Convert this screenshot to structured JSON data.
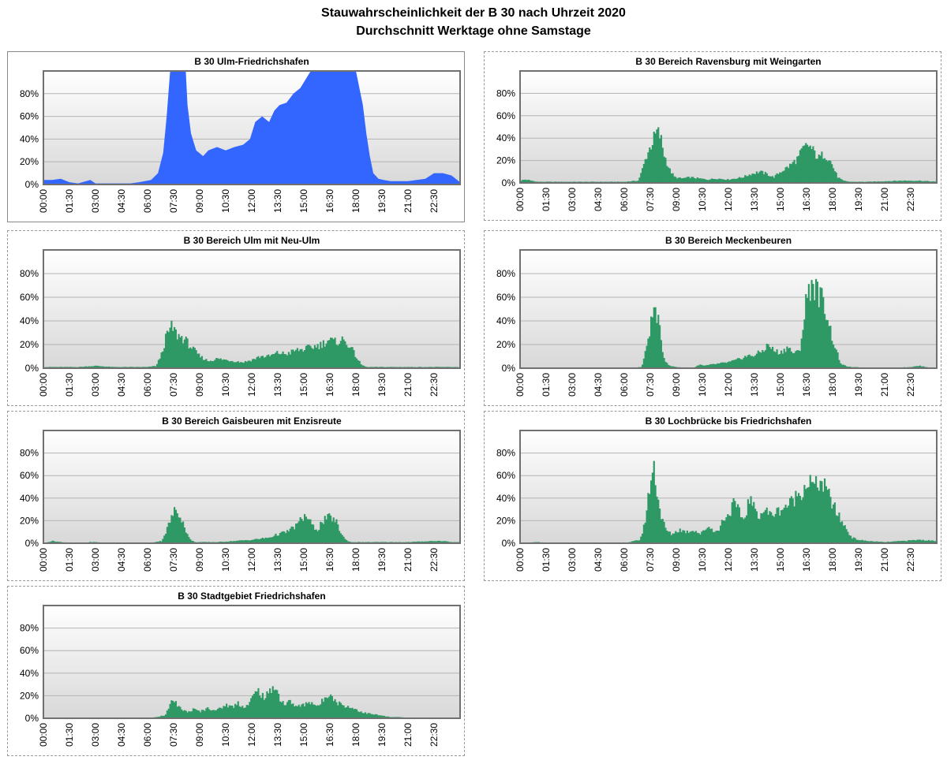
{
  "page": {
    "title": "Stauwahrscheinlichkeit der B 30 nach Uhrzeit 2020",
    "subtitle": "Durchschnitt Werktage ohne Samstage"
  },
  "axes": {
    "x_tick_labels": [
      "00:00",
      "01:30",
      "03:00",
      "04:30",
      "06:00",
      "07:30",
      "09:00",
      "10:30",
      "12:00",
      "13:30",
      "15:00",
      "16:30",
      "18:00",
      "19:30",
      "21:00",
      "22:30"
    ],
    "y_tick_labels": [
      "0%",
      "20%",
      "40%",
      "60%",
      "80%"
    ],
    "y_range": [
      0,
      100
    ],
    "x_range_hours": [
      0,
      24
    ],
    "grid": true
  },
  "colors": {
    "blue": "#3366ff",
    "green": "#2e9965",
    "plot_gradient_top": "#ffffff",
    "plot_gradient_bottom": "#d8d8d8",
    "gridline": "#b4b4b4",
    "plot_frame": "#707070"
  },
  "chart_data": [
    {
      "type": "area",
      "title": "B 30 Ulm-Friedrichshafen",
      "color": "blue",
      "x_unit": "hour of day",
      "y_unit": "%",
      "ylim": [
        0,
        100
      ],
      "points": [
        [
          0,
          4
        ],
        [
          0.5,
          4
        ],
        [
          1,
          5
        ],
        [
          1.5,
          2
        ],
        [
          2,
          1
        ],
        [
          2.7,
          4
        ],
        [
          3,
          1
        ],
        [
          4,
          1
        ],
        [
          5,
          1
        ],
        [
          5.5,
          2
        ],
        [
          6.2,
          4
        ],
        [
          6.6,
          10
        ],
        [
          6.9,
          28
        ],
        [
          7.1,
          60
        ],
        [
          7.3,
          100
        ],
        [
          8.2,
          100
        ],
        [
          8.3,
          70
        ],
        [
          8.5,
          45
        ],
        [
          8.8,
          30
        ],
        [
          9.2,
          25
        ],
        [
          9.5,
          30
        ],
        [
          10,
          33
        ],
        [
          10.5,
          30
        ],
        [
          11,
          33
        ],
        [
          11.5,
          35
        ],
        [
          11.9,
          40
        ],
        [
          12.2,
          55
        ],
        [
          12.6,
          60
        ],
        [
          13,
          55
        ],
        [
          13.3,
          65
        ],
        [
          13.6,
          70
        ],
        [
          14,
          72
        ],
        [
          14.4,
          80
        ],
        [
          14.8,
          85
        ],
        [
          15,
          90
        ],
        [
          15.4,
          100
        ],
        [
          18,
          100
        ],
        [
          18.2,
          85
        ],
        [
          18.4,
          70
        ],
        [
          18.6,
          45
        ],
        [
          18.8,
          25
        ],
        [
          19,
          10
        ],
        [
          19.3,
          5
        ],
        [
          19.6,
          4
        ],
        [
          20,
          3
        ],
        [
          21,
          3
        ],
        [
          22,
          5
        ],
        [
          22.5,
          10
        ],
        [
          23,
          10
        ],
        [
          23.5,
          8
        ],
        [
          24,
          2
        ]
      ]
    },
    {
      "type": "area",
      "title": "B 30 Bereich Ravensburg mit Weingarten",
      "color": "green",
      "x_unit": "hour of day",
      "y_unit": "%",
      "ylim": [
        0,
        100
      ],
      "points": [
        [
          0,
          2
        ],
        [
          0.3,
          3
        ],
        [
          1,
          1
        ],
        [
          3,
          1
        ],
        [
          5,
          1
        ],
        [
          6,
          1
        ],
        [
          6.8,
          2
        ],
        [
          7,
          10
        ],
        [
          7.3,
          25
        ],
        [
          7.6,
          36
        ],
        [
          7.9,
          46
        ],
        [
          8.1,
          40
        ],
        [
          8.3,
          25
        ],
        [
          8.6,
          12
        ],
        [
          8.9,
          5
        ],
        [
          9.3,
          4
        ],
        [
          9.8,
          5
        ],
        [
          10.3,
          4
        ],
        [
          10.8,
          3
        ],
        [
          11.3,
          4
        ],
        [
          12,
          3
        ],
        [
          12.8,
          5
        ],
        [
          13.3,
          8
        ],
        [
          13.8,
          10
        ],
        [
          14.2,
          8
        ],
        [
          14.6,
          5
        ],
        [
          15,
          10
        ],
        [
          15.5,
          15
        ],
        [
          16,
          22
        ],
        [
          16.3,
          30
        ],
        [
          16.6,
          34
        ],
        [
          16.9,
          28
        ],
        [
          17.2,
          22
        ],
        [
          17.5,
          26
        ],
        [
          17.8,
          22
        ],
        [
          18,
          15
        ],
        [
          18.3,
          5
        ],
        [
          18.6,
          2
        ],
        [
          19,
          1
        ],
        [
          20,
          1
        ],
        [
          22,
          2
        ],
        [
          23,
          2
        ],
        [
          24,
          1
        ]
      ]
    },
    {
      "type": "area",
      "title": "B 30 Bereich Ulm mit Neu-Ulm",
      "color": "green",
      "x_unit": "hour of day",
      "y_unit": "%",
      "ylim": [
        0,
        100
      ],
      "points": [
        [
          0,
          1
        ],
        [
          2,
          1
        ],
        [
          3,
          2
        ],
        [
          4,
          1
        ],
        [
          6,
          1
        ],
        [
          6.5,
          2
        ],
        [
          6.8,
          12
        ],
        [
          7.1,
          28
        ],
        [
          7.4,
          35
        ],
        [
          7.7,
          28
        ],
        [
          8.1,
          25
        ],
        [
          8.5,
          18
        ],
        [
          9,
          10
        ],
        [
          9.5,
          6
        ],
        [
          10,
          8
        ],
        [
          10.5,
          7
        ],
        [
          11,
          6
        ],
        [
          11.5,
          5
        ],
        [
          12,
          7
        ],
        [
          12.5,
          10
        ],
        [
          13,
          10
        ],
        [
          13.5,
          13
        ],
        [
          14,
          12
        ],
        [
          14.5,
          15
        ],
        [
          15,
          16
        ],
        [
          15.5,
          18
        ],
        [
          16,
          20
        ],
        [
          16.4,
          24
        ],
        [
          16.8,
          22
        ],
        [
          17.2,
          24
        ],
        [
          17.6,
          20
        ],
        [
          18,
          10
        ],
        [
          18.3,
          3
        ],
        [
          18.6,
          1
        ],
        [
          20,
          1
        ],
        [
          22,
          1
        ],
        [
          23,
          1
        ],
        [
          24,
          1
        ]
      ]
    },
    {
      "type": "area",
      "title": "B 30 Bereich Meckenbeuren",
      "color": "green",
      "x_unit": "hour of day",
      "y_unit": "%",
      "ylim": [
        0,
        100
      ],
      "points": [
        [
          0,
          0
        ],
        [
          6,
          0
        ],
        [
          7,
          1
        ],
        [
          7.2,
          12
        ],
        [
          7.5,
          35
        ],
        [
          7.7,
          50
        ],
        [
          7.9,
          45
        ],
        [
          8.1,
          25
        ],
        [
          8.3,
          8
        ],
        [
          8.6,
          2
        ],
        [
          9,
          1
        ],
        [
          10,
          0
        ],
        [
          10.3,
          3
        ],
        [
          10.6,
          2
        ],
        [
          11,
          3
        ],
        [
          11.5,
          4
        ],
        [
          12,
          5
        ],
        [
          12.5,
          7
        ],
        [
          13,
          10
        ],
        [
          13.5,
          11
        ],
        [
          14,
          15
        ],
        [
          14.3,
          20
        ],
        [
          14.6,
          15
        ],
        [
          15,
          13
        ],
        [
          15.4,
          18
        ],
        [
          15.8,
          12
        ],
        [
          16.1,
          15
        ],
        [
          16.3,
          35
        ],
        [
          16.5,
          60
        ],
        [
          16.8,
          73
        ],
        [
          17.1,
          65
        ],
        [
          17.4,
          58
        ],
        [
          17.7,
          45
        ],
        [
          17.9,
          30
        ],
        [
          18.2,
          15
        ],
        [
          18.5,
          3
        ],
        [
          19,
          1
        ],
        [
          21,
          0
        ],
        [
          22.5,
          1
        ],
        [
          23,
          2
        ],
        [
          23.4,
          1
        ],
        [
          24,
          0
        ]
      ]
    },
    {
      "type": "area",
      "title": "B 30 Bereich Gaisbeuren mit Enzisreute",
      "color": "green",
      "x_unit": "hour of day",
      "y_unit": "%",
      "ylim": [
        0,
        100
      ],
      "points": [
        [
          0,
          0
        ],
        [
          0.5,
          2
        ],
        [
          1,
          1
        ],
        [
          2,
          0
        ],
        [
          2.7,
          1
        ],
        [
          3,
          1
        ],
        [
          4,
          0
        ],
        [
          6,
          0
        ],
        [
          6.8,
          2
        ],
        [
          7,
          8
        ],
        [
          7.3,
          20
        ],
        [
          7.6,
          30
        ],
        [
          7.9,
          25
        ],
        [
          8.1,
          15
        ],
        [
          8.4,
          4
        ],
        [
          8.7,
          1
        ],
        [
          10,
          1
        ],
        [
          11,
          2
        ],
        [
          12,
          3
        ],
        [
          12.5,
          4
        ],
        [
          13,
          5
        ],
        [
          13.5,
          8
        ],
        [
          14,
          10
        ],
        [
          14.5,
          15
        ],
        [
          14.8,
          20
        ],
        [
          15.1,
          25
        ],
        [
          15.3,
          20
        ],
        [
          15.5,
          15
        ],
        [
          15.8,
          12
        ],
        [
          16,
          18
        ],
        [
          16.3,
          22
        ],
        [
          16.6,
          23
        ],
        [
          16.9,
          18
        ],
        [
          17.1,
          10
        ],
        [
          17.4,
          3
        ],
        [
          17.7,
          1
        ],
        [
          19,
          1
        ],
        [
          21,
          1
        ],
        [
          22.5,
          2
        ],
        [
          23,
          2
        ],
        [
          23.5,
          1
        ],
        [
          24,
          1
        ]
      ]
    },
    {
      "type": "area",
      "title": "B 30 Lochbrücke bis Friedrichshafen",
      "color": "green",
      "x_unit": "hour of day",
      "y_unit": "%",
      "ylim": [
        0,
        100
      ],
      "points": [
        [
          0,
          0
        ],
        [
          1,
          1
        ],
        [
          2,
          0
        ],
        [
          6,
          0
        ],
        [
          6.9,
          3
        ],
        [
          7.1,
          12
        ],
        [
          7.3,
          30
        ],
        [
          7.5,
          55
        ],
        [
          7.7,
          68
        ],
        [
          7.9,
          45
        ],
        [
          8.1,
          25
        ],
        [
          8.4,
          12
        ],
        [
          8.7,
          8
        ],
        [
          9.2,
          12
        ],
        [
          9.6,
          10
        ],
        [
          10,
          12
        ],
        [
          10.4,
          8
        ],
        [
          10.8,
          15
        ],
        [
          11.1,
          12
        ],
        [
          11.4,
          10
        ],
        [
          11.7,
          22
        ],
        [
          12,
          25
        ],
        [
          12.3,
          35
        ],
        [
          12.6,
          28
        ],
        [
          12.9,
          20
        ],
        [
          13.2,
          40
        ],
        [
          13.5,
          30
        ],
        [
          13.8,
          25
        ],
        [
          14.1,
          30
        ],
        [
          14.4,
          25
        ],
        [
          14.8,
          28
        ],
        [
          15.2,
          32
        ],
        [
          15.6,
          36
        ],
        [
          15.9,
          42
        ],
        [
          16.3,
          48
        ],
        [
          16.6,
          55
        ],
        [
          17,
          50
        ],
        [
          17.3,
          55
        ],
        [
          17.7,
          45
        ],
        [
          18,
          35
        ],
        [
          18.3,
          25
        ],
        [
          18.7,
          15
        ],
        [
          19.1,
          5
        ],
        [
          19.5,
          3
        ],
        [
          20,
          2
        ],
        [
          21,
          1
        ],
        [
          22,
          2
        ],
        [
          23,
          3
        ],
        [
          24,
          2
        ]
      ]
    },
    {
      "type": "area",
      "title": "B 30 Stadtgebiet Friedrichshafen",
      "color": "green",
      "x_unit": "hour of day",
      "y_unit": "%",
      "ylim": [
        0,
        100
      ],
      "points": [
        [
          0,
          0
        ],
        [
          6,
          0
        ],
        [
          6.5,
          1
        ],
        [
          7,
          3
        ],
        [
          7.2,
          8
        ],
        [
          7.5,
          18
        ],
        [
          7.7,
          10
        ],
        [
          8,
          8
        ],
        [
          8.3,
          5
        ],
        [
          8.6,
          8
        ],
        [
          9,
          6
        ],
        [
          9.5,
          9
        ],
        [
          10,
          7
        ],
        [
          10.5,
          12
        ],
        [
          10.9,
          10
        ],
        [
          11.2,
          14
        ],
        [
          11.5,
          10
        ],
        [
          11.8,
          12
        ],
        [
          12.1,
          20
        ],
        [
          12.4,
          25
        ],
        [
          12.7,
          18
        ],
        [
          13,
          22
        ],
        [
          13.3,
          30
        ],
        [
          13.6,
          18
        ],
        [
          13.9,
          12
        ],
        [
          14.2,
          15
        ],
        [
          14.6,
          10
        ],
        [
          15,
          12
        ],
        [
          15.4,
          15
        ],
        [
          15.8,
          10
        ],
        [
          16.2,
          18
        ],
        [
          16.5,
          24
        ],
        [
          16.8,
          15
        ],
        [
          17.2,
          12
        ],
        [
          17.6,
          10
        ],
        [
          18,
          8
        ],
        [
          18.4,
          5
        ],
        [
          18.8,
          4
        ],
        [
          19.2,
          3
        ],
        [
          19.6,
          2
        ],
        [
          20,
          1
        ],
        [
          20.6,
          1
        ],
        [
          21,
          0
        ],
        [
          24,
          0
        ]
      ]
    }
  ]
}
